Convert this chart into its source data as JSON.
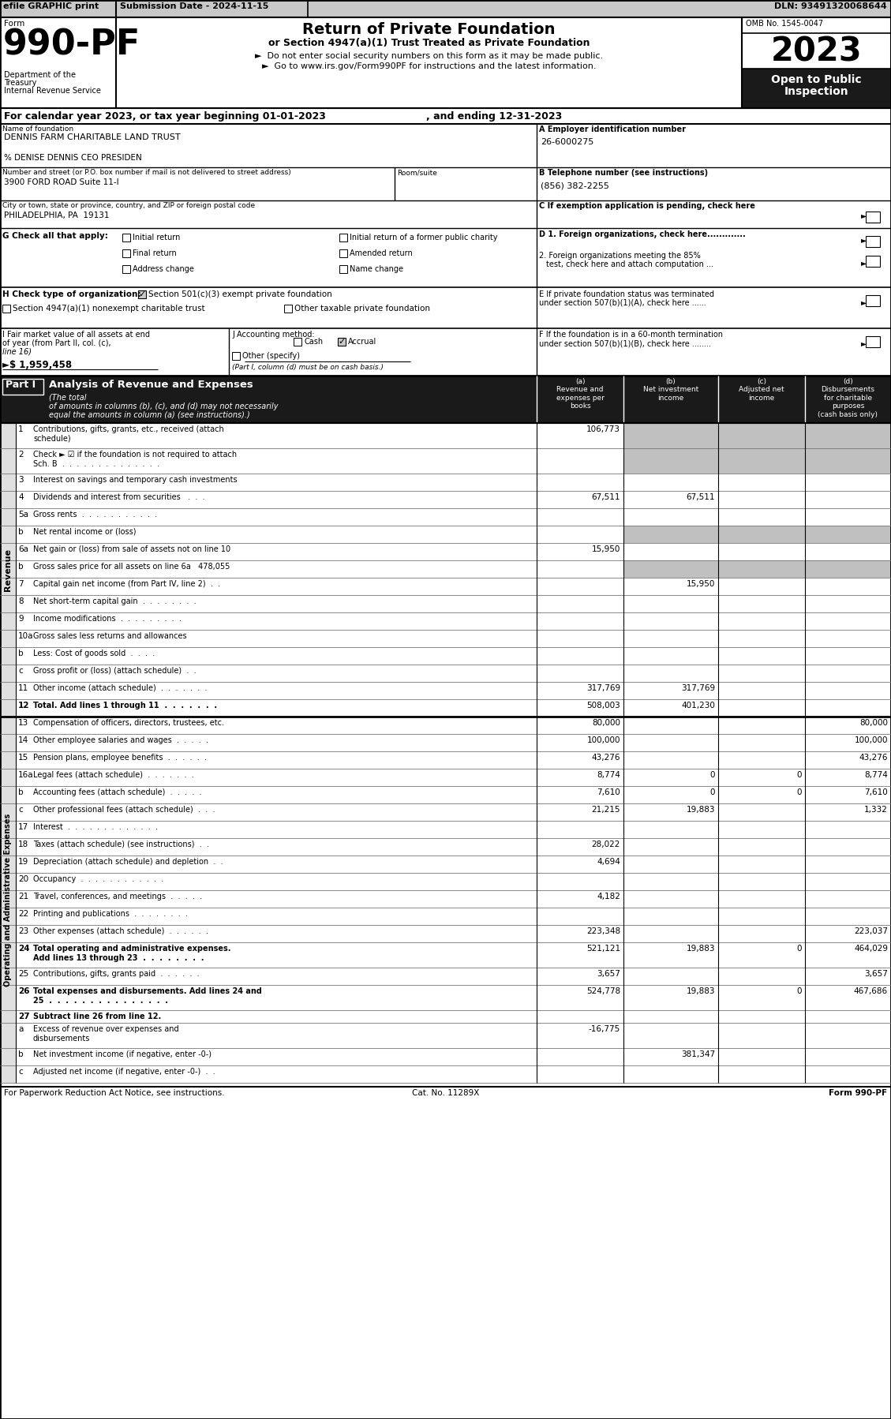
{
  "header_bar": {
    "efile_text": "efile GRAPHIC print",
    "submission": "Submission Date - 2024-11-15",
    "dln": "DLN: 93491320068644"
  },
  "form_number": "990-PF",
  "omb": "OMB No. 1545-0047",
  "year": "2023",
  "title": "Return of Private Foundation",
  "subtitle1": "or Section 4947(a)(1) Trust Treated as Private Foundation",
  "subtitle2": "►  Do not enter social security numbers on this form as it may be made public.",
  "subtitle3": "►  Go to www.irs.gov/Form990PF for instructions and the latest information.",
  "dept1": "Department of the",
  "dept2": "Treasury",
  "dept3": "Internal Revenue Service",
  "calendar_line1": "For calendar year 2023, or tax year beginning 01-01-2023",
  "calendar_line2": ", and ending 12-31-2023",
  "foundation_name_label": "Name of foundation",
  "foundation_name": "DENNIS FARM CHARITABLE LAND TRUST",
  "care_of": "% DENISE DENNIS CEO PRESIDEN",
  "ein_label": "A Employer identification number",
  "ein": "26-6000275",
  "address_label": "Number and street (or P.O. box number if mail is not delivered to street address)",
  "room_label": "Room/suite",
  "address": "3900 FORD ROAD Suite 11-I",
  "phone_label": "B Telephone number (see instructions)",
  "phone": "(856) 382-2255",
  "city_label": "City or town, state or province, country, and ZIP or foreign postal code",
  "city": "PHILADELPHIA, PA  19131",
  "c_label": "C If exemption application is pending, check here",
  "g_label": "G Check all that apply:",
  "d1_label": "D 1. Foreign organizations, check here.............",
  "d2_label_1": "2. Foreign organizations meeting the 85%",
  "d2_label_2": "test, check here and attach computation ...",
  "e_label_1": "E If private foundation status was terminated",
  "e_label_2": "under section 507(b)(1)(A), check here ......",
  "h_label": "H Check type of organization:",
  "h_section501": "Section 501(c)(3) exempt private foundation",
  "h_section4947": "Section 4947(a)(1) nonexempt charitable trust",
  "h_other": "Other taxable private foundation",
  "f_label_1": "F If the foundation is in a 60-month termination",
  "f_label_2": "under section 507(b)(1)(B), check here ........",
  "i_label_1": "I Fair market value of all assets at end",
  "i_label_2": "of year (from Part II, col. (c),",
  "i_label_3": "line 16)",
  "i_value": "►$ 1,959,458",
  "j_label": "J Accounting method:",
  "j_note": "(Part I, column (d) must be on cash basis.)",
  "part1_title": "Part I",
  "part1_subtitle": "Analysis of Revenue and Expenses",
  "part1_italic": "(The total\nof amounts in columns (b), (c), and (d) may not necessarily\nequal the amounts in column (a) (see instructions).)",
  "footer_left": "For Paperwork Reduction Act Notice, see instructions.",
  "footer_cat": "Cat. No. 11289X",
  "footer_right": "Form 990-PF",
  "rows": [
    {
      "num": "1",
      "label": "Contributions, gifts, grants, etc., received (attach\nschedule)",
      "a": "106,773",
      "b": "",
      "c": "",
      "d": "",
      "shade_bcd": true
    },
    {
      "num": "2",
      "label": "Check ► ☑ if the foundation is not required to attach\nSch. B  .  .  .  .  .  .  .  .  .  .  .  .  .  .",
      "a": "",
      "b": "",
      "c": "",
      "d": "",
      "shade_bcd": true
    },
    {
      "num": "3",
      "label": "Interest on savings and temporary cash investments",
      "a": "",
      "b": "",
      "c": "",
      "d": "",
      "shade_bcd": false
    },
    {
      "num": "4",
      "label": "Dividends and interest from securities   .  .  .",
      "a": "67,511",
      "b": "67,511",
      "c": "",
      "d": "",
      "shade_bcd": false
    },
    {
      "num": "5a",
      "label": "Gross rents  .  .  .  .  .  .  .  .  .  .  .",
      "a": "",
      "b": "",
      "c": "",
      "d": "",
      "shade_bcd": false
    },
    {
      "num": "b",
      "label": "Net rental income or (loss)",
      "a": "",
      "b": "",
      "c": "",
      "d": "",
      "shade_bcd": true
    },
    {
      "num": "6a",
      "label": "Net gain or (loss) from sale of assets not on line 10",
      "a": "15,950",
      "b": "",
      "c": "",
      "d": "",
      "shade_bcd": false
    },
    {
      "num": "b",
      "label": "Gross sales price for all assets on line 6a   478,055",
      "a": "",
      "b": "",
      "c": "",
      "d": "",
      "shade_bcd": true
    },
    {
      "num": "7",
      "label": "Capital gain net income (from Part IV, line 2)  .  .",
      "a": "",
      "b": "15,950",
      "c": "",
      "d": "",
      "shade_bcd": false
    },
    {
      "num": "8",
      "label": "Net short-term capital gain  .  .  .  .  .  .  .  .",
      "a": "",
      "b": "",
      "c": "",
      "d": "",
      "shade_bcd": false
    },
    {
      "num": "9",
      "label": "Income modifications  .  .  .  .  .  .  .  .  .",
      "a": "",
      "b": "",
      "c": "",
      "d": "",
      "shade_bcd": false
    },
    {
      "num": "10a",
      "label": "Gross sales less returns and allowances",
      "a": "",
      "b": "",
      "c": "",
      "d": "",
      "shade_bcd": false
    },
    {
      "num": "b",
      "label": "Less: Cost of goods sold  .  .  .  .",
      "a": "",
      "b": "",
      "c": "",
      "d": "",
      "shade_bcd": false
    },
    {
      "num": "c",
      "label": "Gross profit or (loss) (attach schedule)  .  .",
      "a": "",
      "b": "",
      "c": "",
      "d": "",
      "shade_bcd": false
    },
    {
      "num": "11",
      "label": "Other income (attach schedule)  .  .  .  .  .  .  .",
      "a": "317,769",
      "b": "317,769",
      "c": "",
      "d": "",
      "shade_bcd": false
    },
    {
      "num": "12",
      "label": "Total. Add lines 1 through 11  .  .  .  .  .  .  .",
      "a": "508,003",
      "b": "401,230",
      "c": "",
      "d": "",
      "bold": true,
      "shade_bcd": false
    },
    {
      "num": "13",
      "label": "Compensation of officers, directors, trustees, etc.",
      "a": "80,000",
      "b": "",
      "c": "",
      "d": "80,000",
      "shade_bcd": false
    },
    {
      "num": "14",
      "label": "Other employee salaries and wages  .  .  .  .  .",
      "a": "100,000",
      "b": "",
      "c": "",
      "d": "100,000",
      "shade_bcd": false
    },
    {
      "num": "15",
      "label": "Pension plans, employee benefits  .  .  .  .  .  .",
      "a": "43,276",
      "b": "",
      "c": "",
      "d": "43,276",
      "shade_bcd": false
    },
    {
      "num": "16a",
      "label": "Legal fees (attach schedule)  .  .  .  .  .  .  .",
      "a": "8,774",
      "b": "0",
      "c": "0",
      "d": "8,774",
      "shade_bcd": false
    },
    {
      "num": "b",
      "label": "Accounting fees (attach schedule)  .  .  .  .  .",
      "a": "7,610",
      "b": "0",
      "c": "0",
      "d": "7,610",
      "shade_bcd": false
    },
    {
      "num": "c",
      "label": "Other professional fees (attach schedule)  .  .  .",
      "a": "21,215",
      "b": "19,883",
      "c": "",
      "d": "1,332",
      "shade_bcd": false
    },
    {
      "num": "17",
      "label": "Interest  .  .  .  .  .  .  .  .  .  .  .  .  .",
      "a": "",
      "b": "",
      "c": "",
      "d": "",
      "shade_bcd": false
    },
    {
      "num": "18",
      "label": "Taxes (attach schedule) (see instructions)  .  .",
      "a": "28,022",
      "b": "",
      "c": "",
      "d": "",
      "shade_bcd": false
    },
    {
      "num": "19",
      "label": "Depreciation (attach schedule) and depletion  .  .",
      "a": "4,694",
      "b": "",
      "c": "",
      "d": "",
      "shade_bcd": false
    },
    {
      "num": "20",
      "label": "Occupancy  .  .  .  .  .  .  .  .  .  .  .  .",
      "a": "",
      "b": "",
      "c": "",
      "d": "",
      "shade_bcd": false
    },
    {
      "num": "21",
      "label": "Travel, conferences, and meetings  .  .  .  .  .",
      "a": "4,182",
      "b": "",
      "c": "",
      "d": "",
      "shade_bcd": false
    },
    {
      "num": "22",
      "label": "Printing and publications  .  .  .  .  .  .  .  .",
      "a": "",
      "b": "",
      "c": "",
      "d": "",
      "shade_bcd": false
    },
    {
      "num": "23",
      "label": "Other expenses (attach schedule)  .  .  .  .  .  .",
      "a": "223,348",
      "b": "",
      "c": "",
      "d": "223,037",
      "shade_bcd": false
    },
    {
      "num": "24",
      "label": "Total operating and administrative expenses.\nAdd lines 13 through 23  .  .  .  .  .  .  .  .",
      "a": "521,121",
      "b": "19,883",
      "c": "0",
      "d": "464,029",
      "bold": true,
      "shade_bcd": false
    },
    {
      "num": "25",
      "label": "Contributions, gifts, grants paid  .  .  .  .  .  .",
      "a": "3,657",
      "b": "",
      "c": "",
      "d": "3,657",
      "shade_bcd": false
    },
    {
      "num": "26",
      "label": "Total expenses and disbursements. Add lines 24 and\n25  .  .  .  .  .  .  .  .  .  .  .  .  .  .  .",
      "a": "524,778",
      "b": "19,883",
      "c": "0",
      "d": "467,686",
      "bold": true,
      "shade_bcd": false
    },
    {
      "num": "27",
      "label": "Subtract line 26 from line 12.",
      "a": "",
      "b": "",
      "c": "",
      "d": "",
      "bold": true,
      "header_only": true
    },
    {
      "num": "a",
      "label": "Excess of revenue over expenses and\ndisbursements",
      "a": "-16,775",
      "b": "",
      "c": "",
      "d": ""
    },
    {
      "num": "b",
      "label": "Net investment income (if negative, enter -0-)",
      "a": "",
      "b": "381,347",
      "c": "",
      "d": ""
    },
    {
      "num": "c",
      "label": "Adjusted net income (if negative, enter -0-)  .  .",
      "a": "",
      "b": "",
      "c": "",
      "d": ""
    }
  ]
}
